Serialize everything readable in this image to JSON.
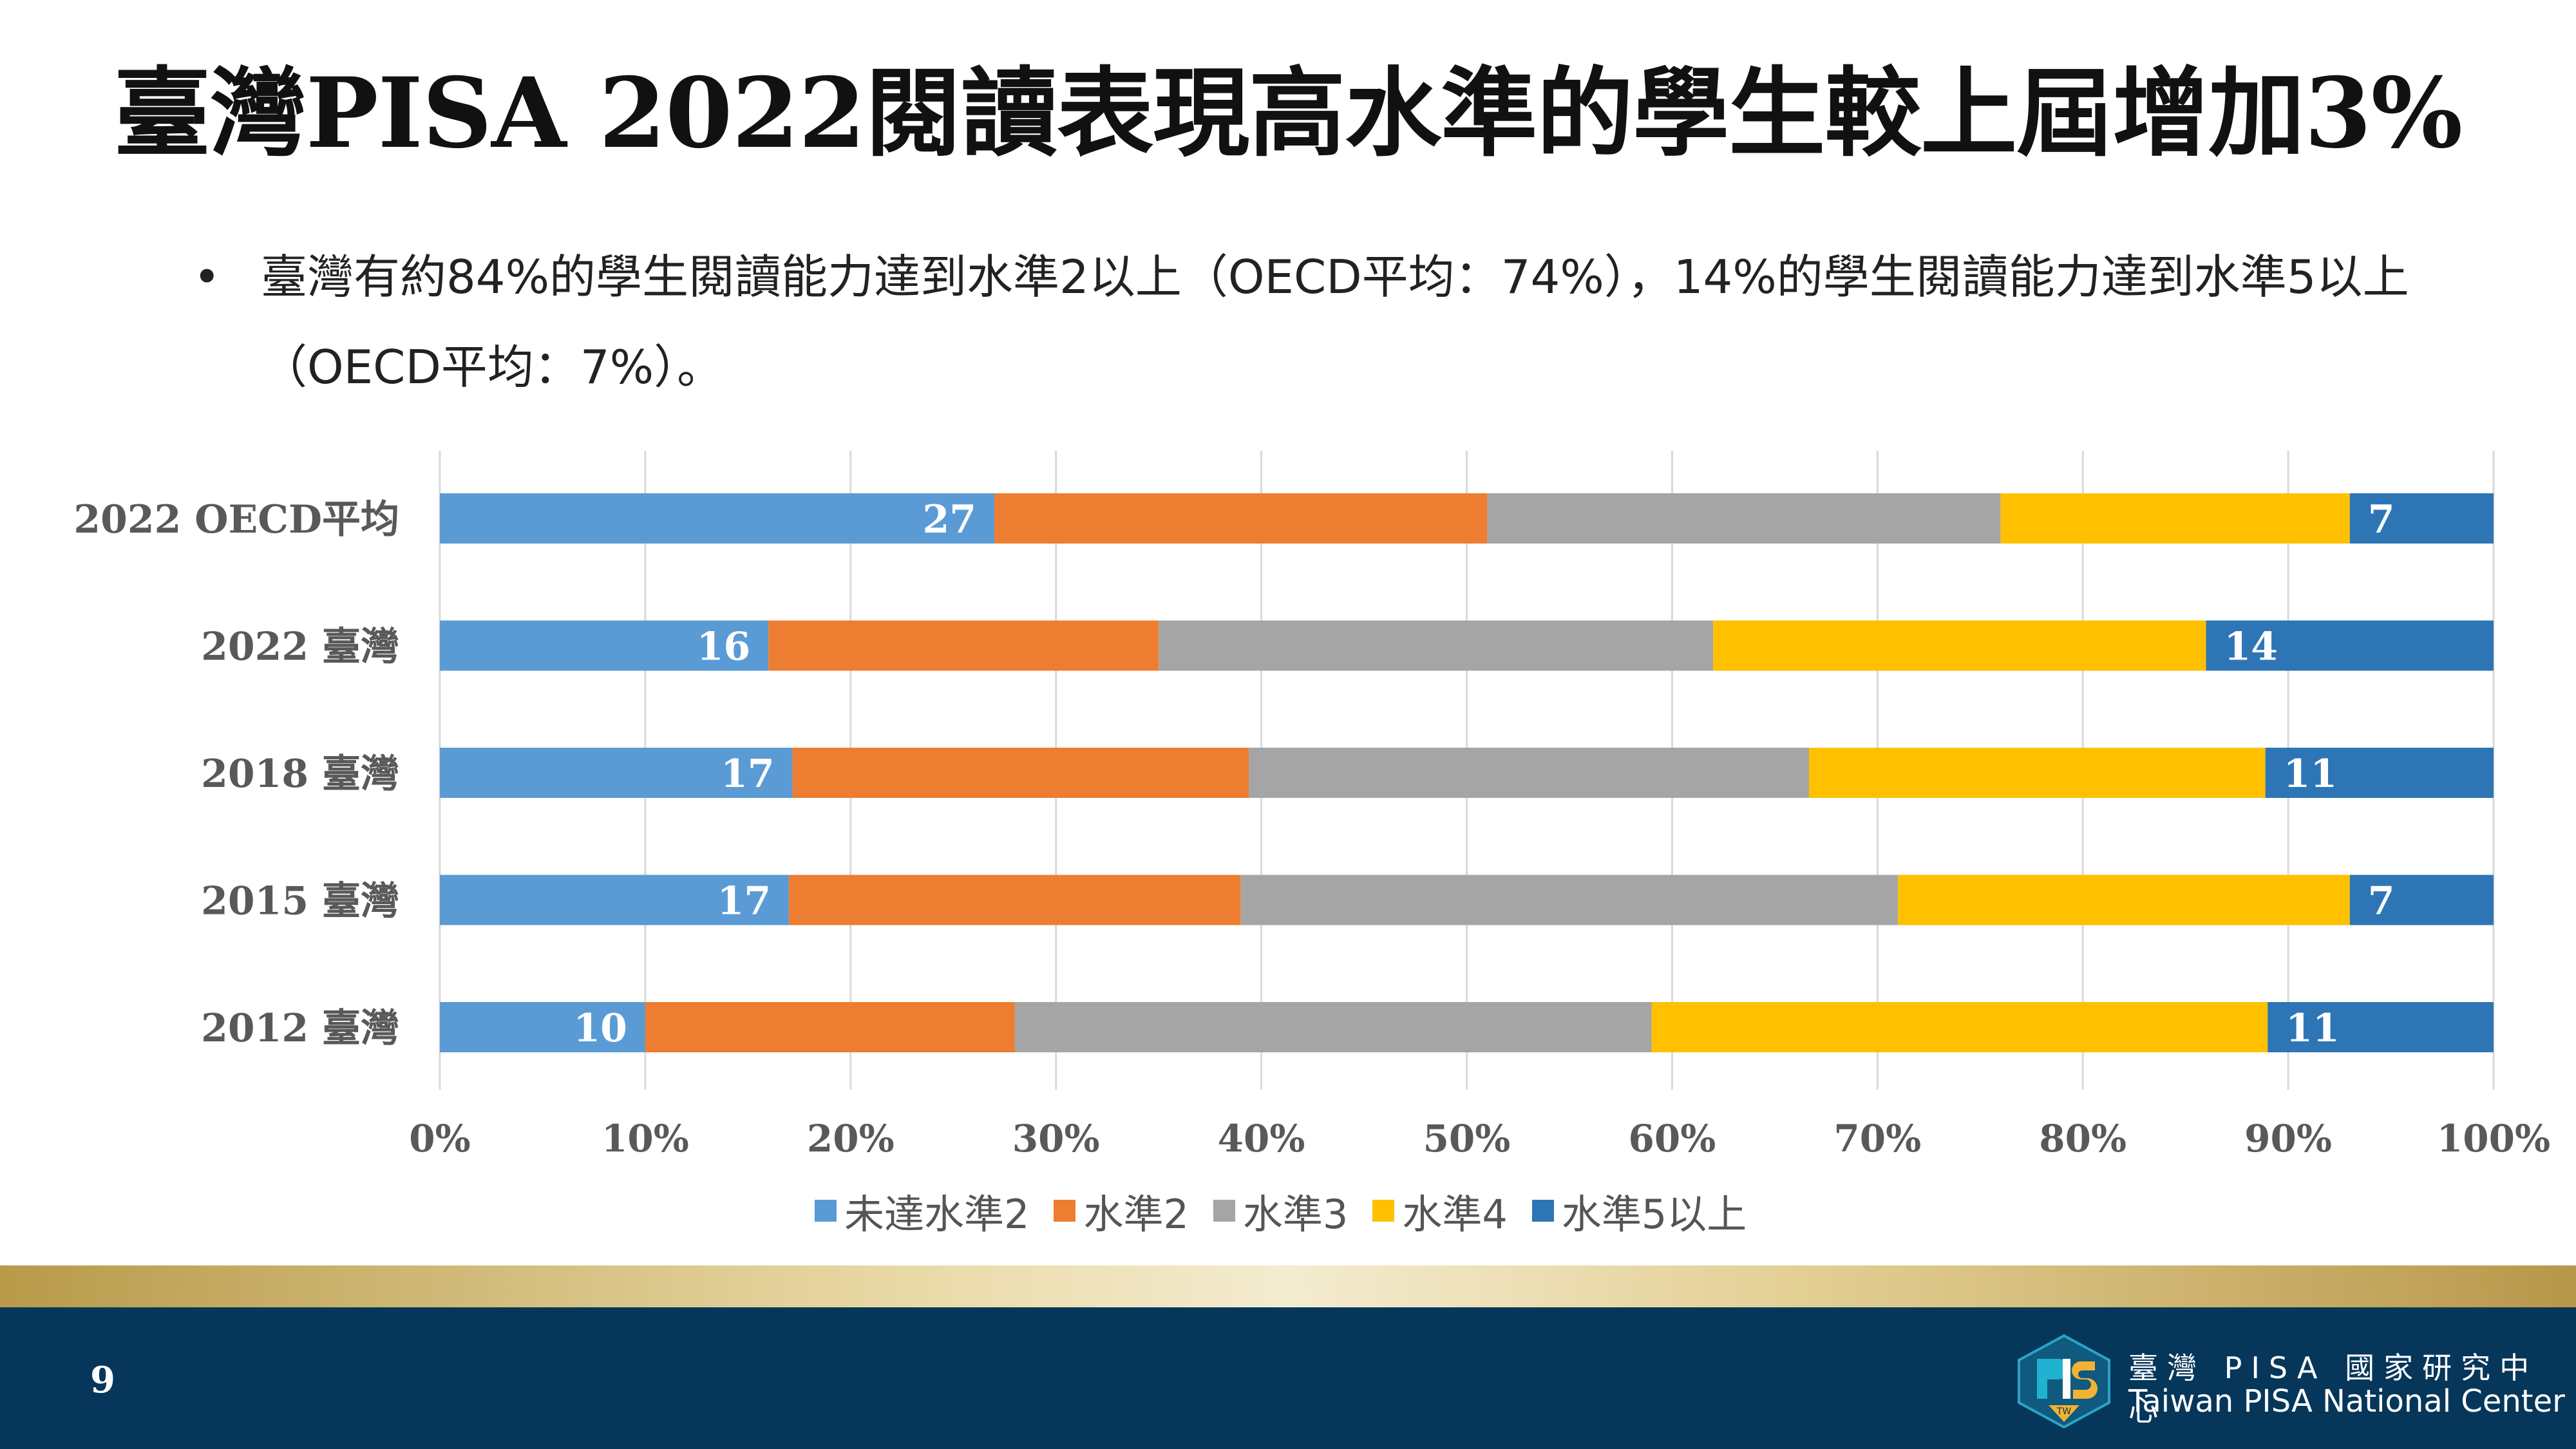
{
  "slide": {
    "title": "臺灣PISA 2022閱讀表現高水準的學生較上屆增加3%",
    "bullet_line1": "臺灣有約84%的學生閱讀能力達到水準2以上（OECD平均：74%），14%的學生閱讀能力達到水準5以上",
    "bullet_line2": "（OECD平均：7%）。",
    "bullet_symbol": "•",
    "page_number": "9"
  },
  "footer": {
    "org_name_cn": "臺灣 PISA 國家研究中心",
    "org_name_en": "Taiwan PISA National Center",
    "logo_icon": "pisa-logo-icon",
    "logo_badge": "TW"
  },
  "chart_data": {
    "type": "bar",
    "orientation": "horizontal",
    "stacked": "percent",
    "categories": [
      "2022 OECD平均",
      "2022 臺灣",
      "2018 臺灣",
      "2015 臺灣",
      "2012 臺灣"
    ],
    "series": [
      {
        "name": "未達水準2",
        "color": "#5b9bd5",
        "values": [
          27,
          16,
          17,
          17,
          10
        ],
        "labels": [
          "27",
          "16",
          "17",
          "17",
          "10"
        ]
      },
      {
        "name": "水準2",
        "color": "#ed7d31",
        "values": [
          24,
          19,
          22,
          22,
          18
        ],
        "labels": [
          "",
          "",
          "",
          "",
          ""
        ]
      },
      {
        "name": "水準3",
        "color": "#a5a5a5",
        "values": [
          25,
          27,
          27,
          32,
          31
        ],
        "labels": [
          "",
          "",
          "",
          "",
          ""
        ]
      },
      {
        "name": "水準4",
        "color": "#ffc000",
        "values": [
          17,
          24,
          22,
          22,
          30
        ],
        "labels": [
          "",
          "",
          "",
          "",
          ""
        ]
      },
      {
        "name": "水準5以上",
        "color": "#2e75b6",
        "values": [
          7,
          14,
          11,
          7,
          11
        ],
        "labels": [
          "7",
          "14",
          "11",
          "7",
          "11"
        ]
      }
    ],
    "xticks": [
      "0%",
      "10%",
      "20%",
      "30%",
      "40%",
      "50%",
      "60%",
      "70%",
      "80%",
      "90%",
      "100%"
    ],
    "xlim": [
      0,
      100
    ],
    "grid": true,
    "legend_position": "bottom"
  }
}
